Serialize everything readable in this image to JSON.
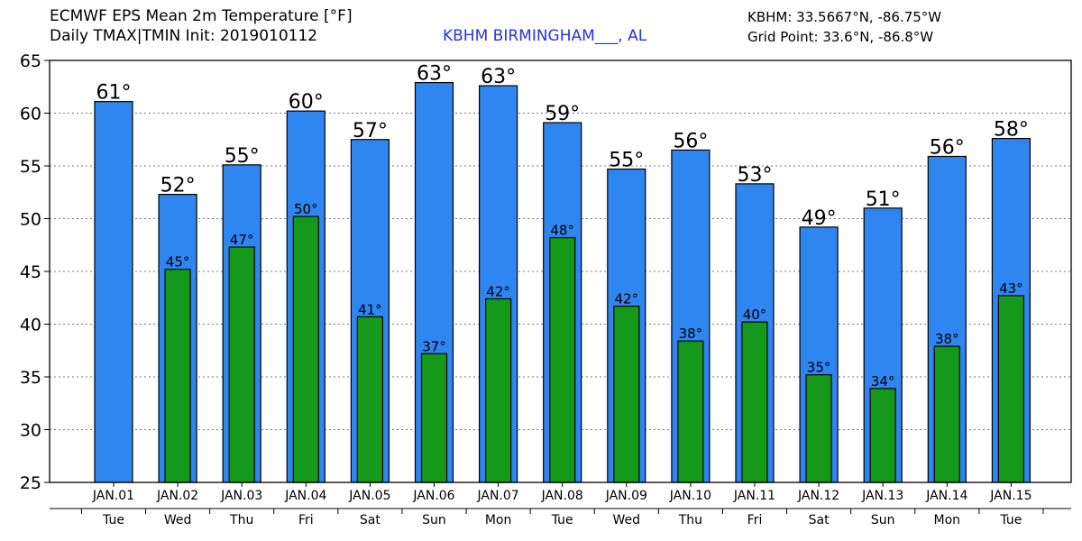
{
  "header": {
    "title": "ECMWF EPS Mean 2m Temperature [°F]",
    "subtitle": "Daily TMAX|TMIN Init: 2019010112",
    "station": "KBHM BIRMINGHAM___, AL",
    "station_coords": "KBHM: 33.5667°N, -86.75°W",
    "grid_point": "Grid Point: 33.6°N, -86.8°W"
  },
  "colors": {
    "tmax": "#2f86f0",
    "tmin": "#14991a",
    "station_text": "#2233ee"
  },
  "chart_data": {
    "type": "bar",
    "title": "ECMWF EPS Mean 2m Temperature [°F]",
    "categories": [
      "JAN.01",
      "JAN.02",
      "JAN.03",
      "JAN.04",
      "JAN.05",
      "JAN.06",
      "JAN.07",
      "JAN.08",
      "JAN.09",
      "JAN.10",
      "JAN.11",
      "JAN.12",
      "JAN.13",
      "JAN.14",
      "JAN.15"
    ],
    "weekdays": [
      "Tue",
      "Wed",
      "Thu",
      "Fri",
      "Sat",
      "Sun",
      "Mon",
      "Tue",
      "Wed",
      "Thu",
      "Fri",
      "Sat",
      "Sun",
      "Mon",
      "Tue"
    ],
    "series": [
      {
        "values": [
          61.1,
          52.3,
          55.1,
          60.2,
          57.5,
          62.9,
          62.6,
          59.1,
          54.7,
          56.5,
          53.3,
          49.2,
          51.0,
          55.9,
          57.6
        ],
        "labels": [
          "61°",
          "52°",
          "55°",
          "60°",
          "57°",
          "63°",
          "63°",
          "59°",
          "55°",
          "56°",
          "53°",
          "49°",
          "51°",
          "56°",
          "58°"
        ]
      },
      {
        "values": [
          null,
          45.2,
          47.3,
          50.2,
          40.7,
          37.2,
          42.4,
          48.2,
          41.7,
          38.4,
          40.2,
          35.2,
          33.9,
          37.9,
          42.7
        ],
        "labels": [
          "",
          "45°",
          "47°",
          "50°",
          "41°",
          "37°",
          "42°",
          "48°",
          "42°",
          "38°",
          "40°",
          "35°",
          "34°",
          "38°",
          "43°"
        ]
      }
    ],
    "yticks": [
      "25",
      "30",
      "35",
      "40",
      "45",
      "50",
      "55",
      "60",
      "65"
    ],
    "ylim": [
      25,
      65
    ],
    "grid": true
  }
}
